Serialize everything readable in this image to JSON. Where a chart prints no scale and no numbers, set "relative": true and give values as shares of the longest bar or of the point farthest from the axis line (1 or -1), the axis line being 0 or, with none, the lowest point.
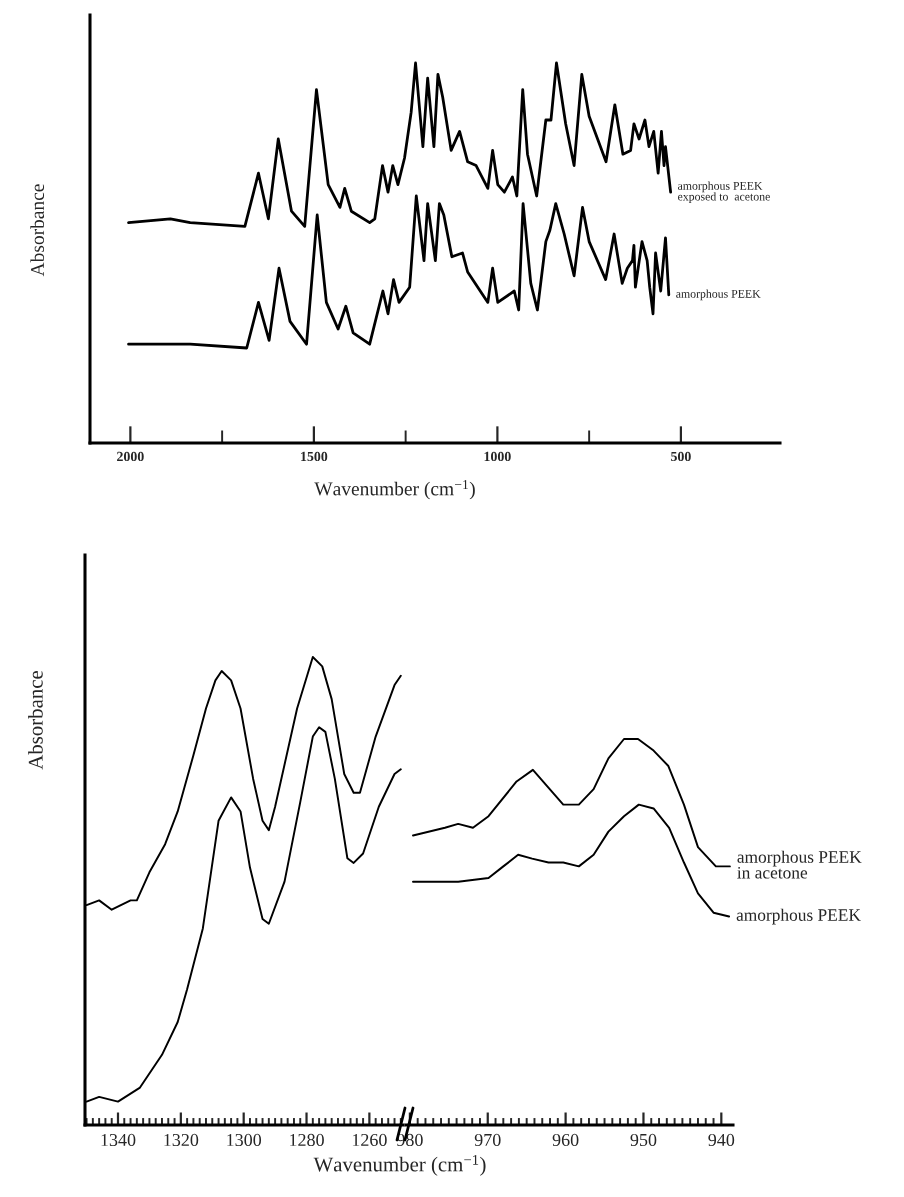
{
  "chart_data": [
    {
      "type": "line",
      "relative": true,
      "xlabel": "Wavenumber (cm$^{−1}$)",
      "ylabel": "Absorbance",
      "xlim": [
        2110,
        230
      ],
      "xticks": [
        2000,
        {
          "value": 1750,
          "label": null
        },
        1500,
        {
          "value": 1250,
          "label": null
        },
        1000,
        {
          "value": 750,
          "label": null
        },
        500
      ],
      "series": [
        {
          "name": "amorphous PEEK\nexposed to  acetone",
          "color": "#000000",
          "x": [
            2005,
            1891,
            1837,
            1688,
            1651,
            1624,
            1597,
            1561,
            1525,
            1493,
            1461,
            1429,
            1416,
            1398,
            1348,
            1334,
            1313,
            1298,
            1285,
            1271,
            1253,
            1235,
            1223,
            1203,
            1190,
            1173,
            1162,
            1149,
            1126,
            1103,
            1081,
            1058,
            1026,
            1013,
            999,
            981,
            959,
            947,
            931,
            918,
            893,
            868,
            854,
            839,
            814,
            791,
            770,
            750,
            727,
            704,
            680,
            658,
            637,
            628,
            614,
            598,
            587,
            574,
            562,
            553,
            546,
            542,
            528
          ],
          "values": [
            0.58,
            0.59,
            0.58,
            0.57,
            0.71,
            0.59,
            0.8,
            0.61,
            0.57,
            0.93,
            0.68,
            0.62,
            0.67,
            0.61,
            0.58,
            0.59,
            0.73,
            0.66,
            0.73,
            0.68,
            0.75,
            0.87,
            1.0,
            0.78,
            0.96,
            0.78,
            0.97,
            0.91,
            0.77,
            0.82,
            0.74,
            0.73,
            0.67,
            0.77,
            0.68,
            0.66,
            0.7,
            0.65,
            0.93,
            0.76,
            0.65,
            0.85,
            0.85,
            1.0,
            0.84,
            0.73,
            0.97,
            0.86,
            0.8,
            0.74,
            0.89,
            0.76,
            0.77,
            0.84,
            0.8,
            0.85,
            0.78,
            0.82,
            0.71,
            0.82,
            0.73,
            0.78,
            0.66
          ]
        },
        {
          "name": "amorphous PEEK",
          "color": "#000000",
          "x": [
            2005,
            1910,
            1837,
            1683,
            1651,
            1622,
            1595,
            1565,
            1520,
            1491,
            1466,
            1434,
            1413,
            1393,
            1348,
            1312,
            1298,
            1283,
            1268,
            1239,
            1221,
            1200,
            1190,
            1169,
            1158,
            1146,
            1124,
            1095,
            1081,
            1026,
            1013,
            999,
            954,
            942,
            930,
            909,
            891,
            868,
            857,
            841,
            818,
            791,
            768,
            750,
            705,
            682,
            660,
            646,
            632,
            628,
            624,
            606,
            592,
            585,
            576,
            569,
            555,
            542,
            533
          ],
          "values": [
            0.26,
            0.26,
            0.26,
            0.25,
            0.37,
            0.27,
            0.46,
            0.32,
            0.26,
            0.6,
            0.37,
            0.3,
            0.36,
            0.29,
            0.26,
            0.4,
            0.34,
            0.43,
            0.37,
            0.41,
            0.65,
            0.48,
            0.63,
            0.48,
            0.63,
            0.6,
            0.49,
            0.5,
            0.45,
            0.37,
            0.46,
            0.37,
            0.4,
            0.35,
            0.63,
            0.42,
            0.35,
            0.53,
            0.56,
            0.63,
            0.55,
            0.44,
            0.62,
            0.53,
            0.43,
            0.55,
            0.42,
            0.46,
            0.48,
            0.52,
            0.41,
            0.53,
            0.48,
            0.41,
            0.34,
            0.5,
            0.4,
            0.54,
            0.39
          ]
        }
      ]
    },
    {
      "type": "line",
      "relative": true,
      "xlabel": "Wavenumber (cm$^{−1}$)",
      "ylabel": "Absorbance",
      "xlim": [
        1350.5,
        1249.3
      ],
      "xticks": [
        {
          "value": 1350,
          "label": null
        },
        {
          "value": 1348,
          "label": null
        },
        {
          "value": 1346,
          "label": null
        },
        {
          "value": 1344,
          "label": null
        },
        {
          "value": 1342,
          "label": null
        },
        1340,
        {
          "value": 1338,
          "label": null
        },
        {
          "value": 1336,
          "label": null
        },
        {
          "value": 1334,
          "label": null
        },
        {
          "value": 1332,
          "label": null
        },
        {
          "value": 1330,
          "label": null
        },
        {
          "value": 1328,
          "label": null
        },
        {
          "value": 1326,
          "label": null
        },
        {
          "value": 1324,
          "label": null
        },
        {
          "value": 1322,
          "label": null
        },
        1320,
        {
          "value": 1318,
          "label": null
        },
        {
          "value": 1316,
          "label": null
        },
        {
          "value": 1314,
          "label": null
        },
        {
          "value": 1312,
          "label": null
        },
        {
          "value": 1310,
          "label": null
        },
        {
          "value": 1308,
          "label": null
        },
        {
          "value": 1306,
          "label": null
        },
        {
          "value": 1304,
          "label": null
        },
        {
          "value": 1302,
          "label": null
        },
        1300,
        {
          "value": 1298,
          "label": null
        },
        {
          "value": 1296,
          "label": null
        },
        {
          "value": 1294,
          "label": null
        },
        {
          "value": 1292,
          "label": null
        },
        {
          "value": 1290,
          "label": null
        },
        {
          "value": 1288,
          "label": null
        },
        {
          "value": 1286,
          "label": null
        },
        {
          "value": 1284,
          "label": null
        },
        {
          "value": 1282,
          "label": null
        },
        1280,
        {
          "value": 1278,
          "label": null
        },
        {
          "value": 1276,
          "label": null
        },
        {
          "value": 1274,
          "label": null
        },
        {
          "value": 1272,
          "label": null
        },
        {
          "value": 1270,
          "label": null
        },
        {
          "value": 1268,
          "label": null
        },
        {
          "value": 1266,
          "label": null
        },
        {
          "value": 1264,
          "label": null
        },
        {
          "value": 1262,
          "label": null
        },
        1260,
        {
          "value": 1258,
          "label": null
        },
        {
          "value": 1256,
          "label": null
        },
        {
          "value": 1254,
          "label": null
        },
        {
          "value": 1252,
          "label": null
        },
        {
          "value": 1250,
          "label": null
        }
      ],
      "series": [
        {
          "color": "#000000",
          "x": [
            1350,
            1346,
            1342,
            1336,
            1334,
            1330,
            1325,
            1321,
            1316,
            1312,
            1309,
            1307,
            1304,
            1301,
            1297,
            1294,
            1292,
            1290,
            1283,
            1278,
            1275,
            1272,
            1268,
            1265,
            1263,
            1258,
            1252,
            1250
          ],
          "values": [
            0.47,
            0.48,
            0.46,
            0.48,
            0.48,
            0.54,
            0.6,
            0.67,
            0.79,
            0.89,
            0.95,
            0.97,
            0.95,
            0.89,
            0.74,
            0.65,
            0.63,
            0.68,
            0.89,
            1.0,
            0.98,
            0.91,
            0.75,
            0.71,
            0.71,
            0.83,
            0.94,
            0.96
          ]
        },
        {
          "color": "#000000",
          "x": [
            1350,
            1346,
            1340,
            1333,
            1326,
            1321,
            1318,
            1313,
            1308,
            1304,
            1301,
            1298,
            1294,
            1292,
            1287,
            1282,
            1278,
            1276,
            1274,
            1271,
            1267,
            1265,
            1262,
            1257,
            1252,
            1250
          ],
          "values": [
            0.05,
            0.06,
            0.05,
            0.08,
            0.15,
            0.22,
            0.29,
            0.42,
            0.65,
            0.7,
            0.67,
            0.55,
            0.44,
            0.43,
            0.52,
            0.69,
            0.83,
            0.85,
            0.84,
            0.74,
            0.57,
            0.56,
            0.58,
            0.68,
            0.75,
            0.76
          ]
        }
      ]
    },
    {
      "type": "line",
      "relative": true,
      "xlim": [
        980.5,
        938.5
      ],
      "xticks": [
        980,
        {
          "value": 979,
          "label": null
        },
        {
          "value": 978,
          "label": null
        },
        {
          "value": 977,
          "label": null
        },
        {
          "value": 976,
          "label": null
        },
        {
          "value": 975,
          "label": null
        },
        {
          "value": 974,
          "label": null
        },
        {
          "value": 973,
          "label": null
        },
        {
          "value": 972,
          "label": null
        },
        {
          "value": 971,
          "label": null
        },
        970,
        {
          "value": 969,
          "label": null
        },
        {
          "value": 968,
          "label": null
        },
        {
          "value": 967,
          "label": null
        },
        {
          "value": 966,
          "label": null
        },
        {
          "value": 965,
          "label": null
        },
        {
          "value": 964,
          "label": null
        },
        {
          "value": 963,
          "label": null
        },
        {
          "value": 962,
          "label": null
        },
        {
          "value": 961,
          "label": null
        },
        960,
        {
          "value": 959,
          "label": null
        },
        {
          "value": 958,
          "label": null
        },
        {
          "value": 957,
          "label": null
        },
        {
          "value": 956,
          "label": null
        },
        {
          "value": 955,
          "label": null
        },
        {
          "value": 954,
          "label": null
        },
        {
          "value": 953,
          "label": null
        },
        {
          "value": 952,
          "label": null
        },
        {
          "value": 951,
          "label": null
        },
        950,
        {
          "value": 949,
          "label": null
        },
        {
          "value": 948,
          "label": null
        },
        {
          "value": 947,
          "label": null
        },
        {
          "value": 946,
          "label": null
        },
        {
          "value": 945,
          "label": null
        },
        {
          "value": 944,
          "label": null
        },
        {
          "value": 943,
          "label": null
        },
        {
          "value": 942,
          "label": null
        },
        {
          "value": 941,
          "label": null
        },
        940
      ],
      "series": [
        {
          "name": "amorphous PEEK\nin acetone",
          "color": "#000000",
          "x": [
            979.6,
            975.5,
            973.8,
            971.9,
            969.9,
            966.3,
            964.2,
            960.3,
            958.3,
            956.4,
            954.5,
            952.5,
            950.7,
            948.7,
            946.8,
            944.8,
            943.0,
            940.7,
            938.9
          ],
          "values": [
            0.75,
            0.77,
            0.78,
            0.77,
            0.8,
            0.89,
            0.92,
            0.83,
            0.83,
            0.87,
            0.95,
            1.0,
            1.0,
            0.97,
            0.93,
            0.83,
            0.72,
            0.67,
            0.67
          ]
        },
        {
          "name": "amorphous PEEK",
          "color": "#000000",
          "x": [
            979.6,
            976.6,
            973.8,
            969.9,
            968.0,
            966.1,
            964.3,
            962.2,
            960.3,
            958.3,
            956.4,
            954.5,
            952.5,
            950.6,
            948.7,
            946.7,
            944.8,
            943.0,
            941.0,
            939.0
          ],
          "values": [
            0.63,
            0.63,
            0.63,
            0.64,
            0.67,
            0.7,
            0.69,
            0.68,
            0.68,
            0.67,
            0.7,
            0.76,
            0.8,
            0.83,
            0.82,
            0.77,
            0.68,
            0.6,
            0.55,
            0.54
          ]
        }
      ]
    }
  ]
}
